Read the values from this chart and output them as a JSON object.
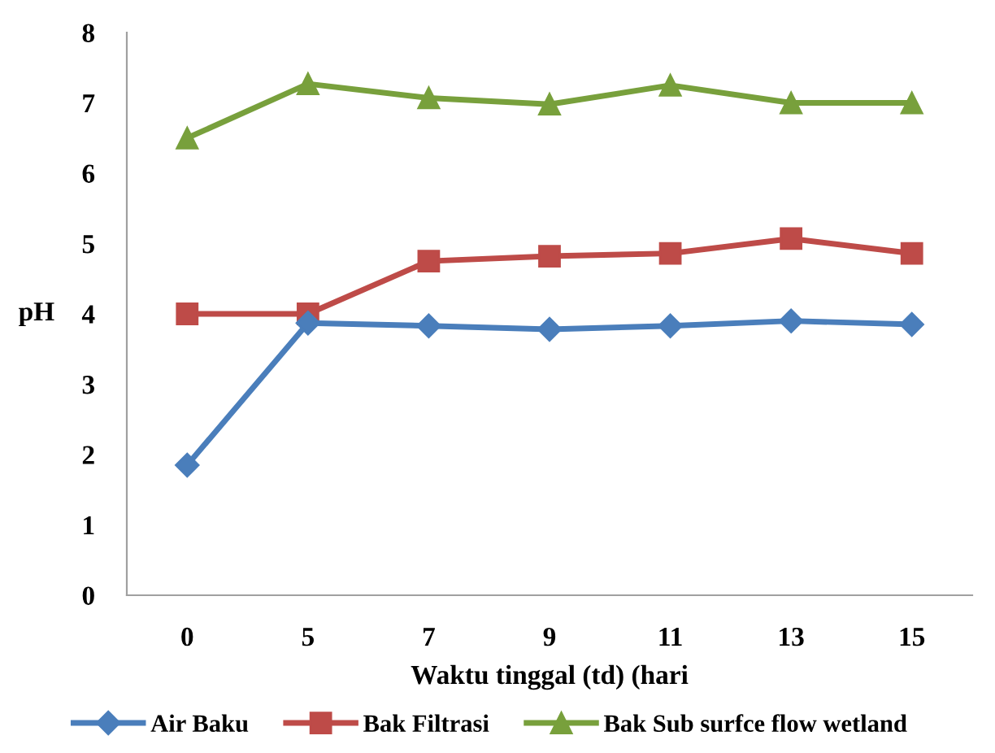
{
  "chart_data": {
    "type": "line",
    "xlabel": "Waktu tinggal (td) (hari",
    "ylabel": "pH",
    "categories": [
      "0",
      "5",
      "7",
      "9",
      "11",
      "13",
      "15"
    ],
    "ylim": [
      0,
      8
    ],
    "yticks": [
      0,
      1,
      2,
      3,
      4,
      5,
      6,
      7,
      8
    ],
    "grid": false,
    "legend": "bottom",
    "series": [
      {
        "name": "Air Baku",
        "color": "#4a7ebb",
        "marker": "diamond",
        "values": [
          1.85,
          3.87,
          3.83,
          3.78,
          3.83,
          3.9,
          3.85
        ]
      },
      {
        "name": "Bak Filtrasi",
        "color": "#be4b48",
        "marker": "square",
        "values": [
          4.0,
          4.0,
          4.75,
          4.82,
          4.86,
          5.07,
          4.86
        ]
      },
      {
        "name": "Bak Sub surfce flow wetland",
        "color": "#78a03c",
        "marker": "triangle",
        "values": [
          6.5,
          7.27,
          7.07,
          6.98,
          7.25,
          7.0,
          7.0
        ]
      }
    ]
  }
}
